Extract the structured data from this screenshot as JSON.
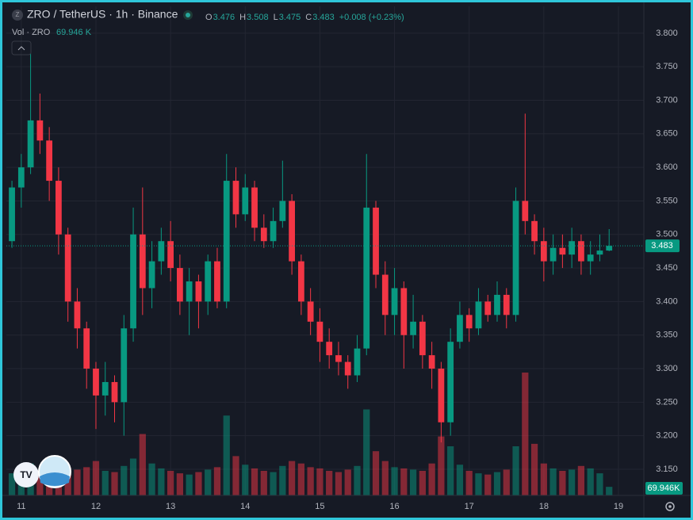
{
  "chart_data": {
    "type": "candlestick",
    "title": "ZRO / TetherUS · 1h · Binance",
    "legend": [
      {
        "key": "O",
        "value": "3.476"
      },
      {
        "key": "H",
        "value": "3.508"
      },
      {
        "key": "L",
        "value": "3.475"
      },
      {
        "key": "C",
        "value": "3.483"
      }
    ],
    "change": "+0.008 (+0.23%)",
    "volume_title": "Vol · ZRO",
    "volume_value": "69.946 K",
    "last_price": {
      "value": 3.483,
      "label": "3.483"
    },
    "last_volume_label": "69.946K",
    "up_color": "#089981",
    "down_color": "#f23645",
    "grid": true,
    "xlim": [
      10.8,
      19.34
    ],
    "xticks": [
      11,
      12,
      13,
      14,
      15,
      16,
      17,
      18,
      19
    ],
    "ylim": [
      3.111,
      3.84
    ],
    "yticks": [
      {
        "value": 3.15,
        "label": "3.150"
      },
      {
        "value": 3.2,
        "label": "3.200"
      },
      {
        "value": 3.25,
        "label": "3.250"
      },
      {
        "value": 3.3,
        "label": "3.300"
      },
      {
        "value": 3.35,
        "label": "3.350"
      },
      {
        "value": 3.4,
        "label": "3.400"
      },
      {
        "value": 3.45,
        "label": "3.450"
      },
      {
        "value": 3.5,
        "label": "3.500"
      },
      {
        "value": 3.55,
        "label": "3.550"
      },
      {
        "value": 3.6,
        "label": "3.600"
      },
      {
        "value": 3.65,
        "label": "3.650"
      },
      {
        "value": 3.7,
        "label": "3.700"
      },
      {
        "value": 3.75,
        "label": "3.750"
      },
      {
        "value": 3.8,
        "label": "3.800"
      }
    ],
    "x": [
      10.875,
      11,
      11.125,
      11.25,
      11.375,
      11.5,
      11.625,
      11.75,
      11.875,
      12,
      12.125,
      12.25,
      12.375,
      12.5,
      12.625,
      12.75,
      12.875,
      13,
      13.125,
      13.25,
      13.375,
      13.5,
      13.625,
      13.75,
      13.875,
      14,
      14.125,
      14.25,
      14.375,
      14.5,
      14.625,
      14.75,
      14.875,
      15,
      15.125,
      15.25,
      15.375,
      15.5,
      15.625,
      15.75,
      15.875,
      16,
      16.125,
      16.25,
      16.375,
      16.5,
      16.625,
      16.75,
      16.875,
      17,
      17.125,
      17.25,
      17.375,
      17.5,
      17.625,
      17.75,
      17.875,
      18,
      18.125,
      18.25,
      18.375,
      18.5,
      18.625,
      18.75,
      18.875
    ],
    "open": [
      3.49,
      3.57,
      3.6,
      3.67,
      3.64,
      3.58,
      3.5,
      3.4,
      3.36,
      3.3,
      3.26,
      3.28,
      3.25,
      3.36,
      3.5,
      3.42,
      3.46,
      3.49,
      3.45,
      3.4,
      3.43,
      3.4,
      3.46,
      3.4,
      3.58,
      3.53,
      3.57,
      3.51,
      3.49,
      3.52,
      3.55,
      3.46,
      3.4,
      3.37,
      3.34,
      3.32,
      3.31,
      3.29,
      3.33,
      3.54,
      3.44,
      3.38,
      3.42,
      3.35,
      3.37,
      3.32,
      3.3,
      3.22,
      3.34,
      3.38,
      3.36,
      3.4,
      3.38,
      3.41,
      3.38,
      3.55,
      3.52,
      3.49,
      3.46,
      3.48,
      3.47,
      3.49,
      3.46,
      3.47,
      3.476
    ],
    "high": [
      3.58,
      3.62,
      3.77,
      3.71,
      3.66,
      3.6,
      3.51,
      3.42,
      3.37,
      3.31,
      3.31,
      3.29,
      3.38,
      3.54,
      3.57,
      3.49,
      3.51,
      3.52,
      3.47,
      3.45,
      3.44,
      3.47,
      3.48,
      3.62,
      3.6,
      3.59,
      3.58,
      3.53,
      3.54,
      3.61,
      3.56,
      3.47,
      3.42,
      3.39,
      3.36,
      3.34,
      3.32,
      3.35,
      3.62,
      3.55,
      3.46,
      3.45,
      3.43,
      3.41,
      3.38,
      3.34,
      3.31,
      3.36,
      3.4,
      3.39,
      3.42,
      3.41,
      3.43,
      3.42,
      3.57,
      3.68,
      3.53,
      3.51,
      3.5,
      3.5,
      3.51,
      3.5,
      3.49,
      3.5,
      3.508
    ],
    "low": [
      3.48,
      3.54,
      3.59,
      3.62,
      3.55,
      3.47,
      3.37,
      3.33,
      3.27,
      3.21,
      3.23,
      3.22,
      3.2,
      3.34,
      3.38,
      3.39,
      3.44,
      3.43,
      3.38,
      3.35,
      3.36,
      3.38,
      3.39,
      3.39,
      3.51,
      3.52,
      3.49,
      3.48,
      3.48,
      3.51,
      3.44,
      3.38,
      3.35,
      3.31,
      3.3,
      3.29,
      3.27,
      3.28,
      3.32,
      3.42,
      3.35,
      3.35,
      3.3,
      3.33,
      3.3,
      3.27,
      3.19,
      3.2,
      3.33,
      3.34,
      3.35,
      3.37,
      3.37,
      3.36,
      3.37,
      3.5,
      3.47,
      3.43,
      3.44,
      3.45,
      3.45,
      3.44,
      3.44,
      3.46,
      3.475
    ],
    "close": [
      3.57,
      3.6,
      3.67,
      3.64,
      3.58,
      3.5,
      3.4,
      3.36,
      3.3,
      3.26,
      3.28,
      3.25,
      3.36,
      3.5,
      3.42,
      3.46,
      3.49,
      3.45,
      3.4,
      3.43,
      3.4,
      3.46,
      3.4,
      3.58,
      3.53,
      3.57,
      3.51,
      3.49,
      3.52,
      3.55,
      3.46,
      3.4,
      3.37,
      3.34,
      3.32,
      3.31,
      3.29,
      3.33,
      3.54,
      3.44,
      3.38,
      3.42,
      3.35,
      3.37,
      3.32,
      3.3,
      3.22,
      3.34,
      3.38,
      3.36,
      3.4,
      3.38,
      3.41,
      3.38,
      3.55,
      3.52,
      3.49,
      3.46,
      3.48,
      3.47,
      3.49,
      3.46,
      3.47,
      3.476,
      3.483
    ],
    "volume": [
      180,
      220,
      260,
      200,
      170,
      160,
      190,
      210,
      230,
      280,
      200,
      190,
      240,
      300,
      500,
      260,
      220,
      200,
      180,
      170,
      190,
      210,
      230,
      650,
      320,
      250,
      220,
      200,
      190,
      240,
      280,
      260,
      230,
      220,
      200,
      190,
      210,
      240,
      700,
      360,
      280,
      230,
      220,
      210,
      200,
      260,
      480,
      400,
      250,
      200,
      180,
      170,
      190,
      210,
      400,
      1000,
      420,
      260,
      220,
      200,
      210,
      240,
      220,
      180,
      69.946
    ]
  }
}
